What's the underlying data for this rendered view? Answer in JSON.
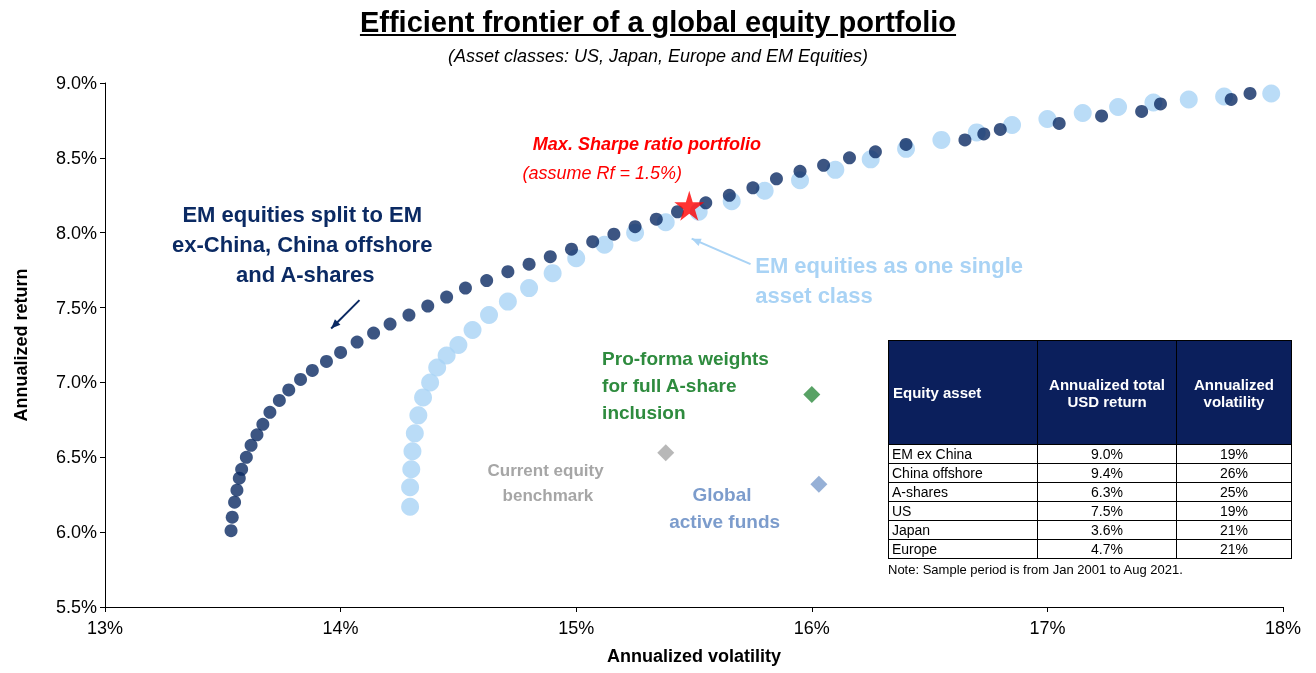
{
  "chart_data": [
    {
      "type": "scatter",
      "title": "Efficient frontier of a global equity portfolio",
      "subtitle": "(Asset classes: US, Japan, Europe and EM Equities)",
      "xlabel": "Annualized volatility",
      "ylabel": "Annualized return",
      "xlim": [
        13,
        18
      ],
      "xticks": [
        {
          "value": 13,
          "label": "13%"
        },
        {
          "value": 14,
          "label": "14%"
        },
        {
          "value": 15,
          "label": "15%"
        },
        {
          "value": 16,
          "label": "16%"
        },
        {
          "value": 17,
          "label": "17%"
        },
        {
          "value": 18,
          "label": "18%"
        }
      ],
      "ylim": [
        5.5,
        9.0
      ],
      "yticks": [
        {
          "value": 5.5,
          "label": "5.5%"
        },
        {
          "value": 6.0,
          "label": "6.0%"
        },
        {
          "value": 6.5,
          "label": "6.5%"
        },
        {
          "value": 7.0,
          "label": "7.0%"
        },
        {
          "value": 7.5,
          "label": "7.5%"
        },
        {
          "value": 8.0,
          "label": "8.0%"
        },
        {
          "value": 8.5,
          "label": "8.5%"
        },
        {
          "value": 9.0,
          "label": "9.0%"
        }
      ],
      "grid": false,
      "legend": false,
      "series": [
        {
          "name": "EM equities as one single asset class",
          "color": "#a9d3f5",
          "marker": "circle",
          "x": [
            14.295,
            14.295,
            14.3,
            14.305,
            14.315,
            14.33,
            14.35,
            14.38,
            14.41,
            14.45,
            14.5,
            14.56,
            14.63,
            14.71,
            14.8,
            14.9,
            15.0,
            15.12,
            15.25,
            15.38,
            15.52,
            15.66,
            15.8,
            15.95,
            16.1,
            16.25,
            16.4,
            16.55,
            16.7,
            16.85,
            17.0,
            17.15,
            17.3,
            17.45,
            17.6,
            17.75,
            17.95
          ],
          "values": [
            6.17,
            6.3,
            6.42,
            6.54,
            6.66,
            6.78,
            6.9,
            7.0,
            7.1,
            7.18,
            7.25,
            7.35,
            7.45,
            7.54,
            7.63,
            7.73,
            7.83,
            7.92,
            8.0,
            8.07,
            8.14,
            8.21,
            8.28,
            8.35,
            8.42,
            8.49,
            8.56,
            8.62,
            8.67,
            8.72,
            8.76,
            8.8,
            8.84,
            8.87,
            8.89,
            8.91,
            8.93
          ]
        },
        {
          "name": "EM equities split to EM ex-China, China offshore and A-shares",
          "color": "#0b2a63",
          "marker": "circle",
          "x": [
            13.535,
            13.54,
            13.55,
            13.56,
            13.57,
            13.58,
            13.6,
            13.62,
            13.645,
            13.67,
            13.7,
            13.74,
            13.78,
            13.83,
            13.88,
            13.94,
            14.0,
            14.07,
            14.14,
            14.21,
            14.29,
            14.37,
            14.45,
            14.53,
            14.62,
            14.71,
            14.8,
            14.89,
            14.98,
            15.07,
            15.16,
            15.25,
            15.34,
            15.43,
            15.55,
            15.65,
            15.75,
            15.85,
            15.95,
            16.05,
            16.16,
            16.27,
            16.4,
            16.65,
            16.73,
            16.8,
            17.05,
            17.23,
            17.4,
            17.48,
            17.78,
            17.86
          ],
          "values": [
            6.01,
            6.1,
            6.2,
            6.28,
            6.36,
            6.42,
            6.5,
            6.58,
            6.65,
            6.72,
            6.8,
            6.88,
            6.95,
            7.02,
            7.08,
            7.14,
            7.2,
            7.27,
            7.33,
            7.39,
            7.45,
            7.51,
            7.57,
            7.63,
            7.68,
            7.74,
            7.79,
            7.84,
            7.89,
            7.94,
            7.99,
            8.04,
            8.09,
            8.14,
            8.2,
            8.25,
            8.3,
            8.36,
            8.41,
            8.45,
            8.5,
            8.54,
            8.59,
            8.62,
            8.66,
            8.69,
            8.73,
            8.78,
            8.81,
            8.86,
            8.89,
            8.93
          ]
        },
        {
          "name": "Max. Sharpe ratio portfolio",
          "color": "#ff0000",
          "marker": "star",
          "x": [
            15.48
          ],
          "values": [
            8.18
          ]
        },
        {
          "name": "Pro-forma weights for full A-share inclusion",
          "color": "#2e8b3e",
          "marker": "diamond",
          "x": [
            16.0
          ],
          "values": [
            6.92
          ]
        },
        {
          "name": "Current equity benchmark",
          "color": "#a6a6a6",
          "marker": "diamond",
          "x": [
            15.38
          ],
          "values": [
            6.53
          ]
        },
        {
          "name": "Global active funds",
          "color": "#7c9ccc",
          "marker": "diamond",
          "x": [
            16.03
          ],
          "values": [
            6.32
          ]
        }
      ],
      "annotations": [
        {
          "text": "(assume Rf = 1.5%)",
          "x": 15.48,
          "y": 8.18
        }
      ]
    },
    {
      "type": "other",
      "xlabel": "Equity asset",
      "categories": [
        "EM ex China",
        "China offshore",
        "A-shares",
        "US",
        "Japan",
        "Europe"
      ],
      "series": [
        {
          "name": "Annualized total USD return",
          "values": [
            9.0,
            9.4,
            6.3,
            7.5,
            3.6,
            4.7
          ],
          "value_labels": [
            "9.0%",
            "9.4%",
            "6.3%",
            "7.5%",
            "3.6%",
            "4.7%"
          ]
        },
        {
          "name": "Annualized volatility",
          "values": [
            19,
            26,
            25,
            19,
            21,
            21
          ],
          "value_labels": [
            "19%",
            "26%",
            "25%",
            "19%",
            "21%",
            "21%"
          ]
        }
      ],
      "annotations": [
        "Note: Sample period is from Jan 2001 to Aug 2021."
      ]
    }
  ]
}
